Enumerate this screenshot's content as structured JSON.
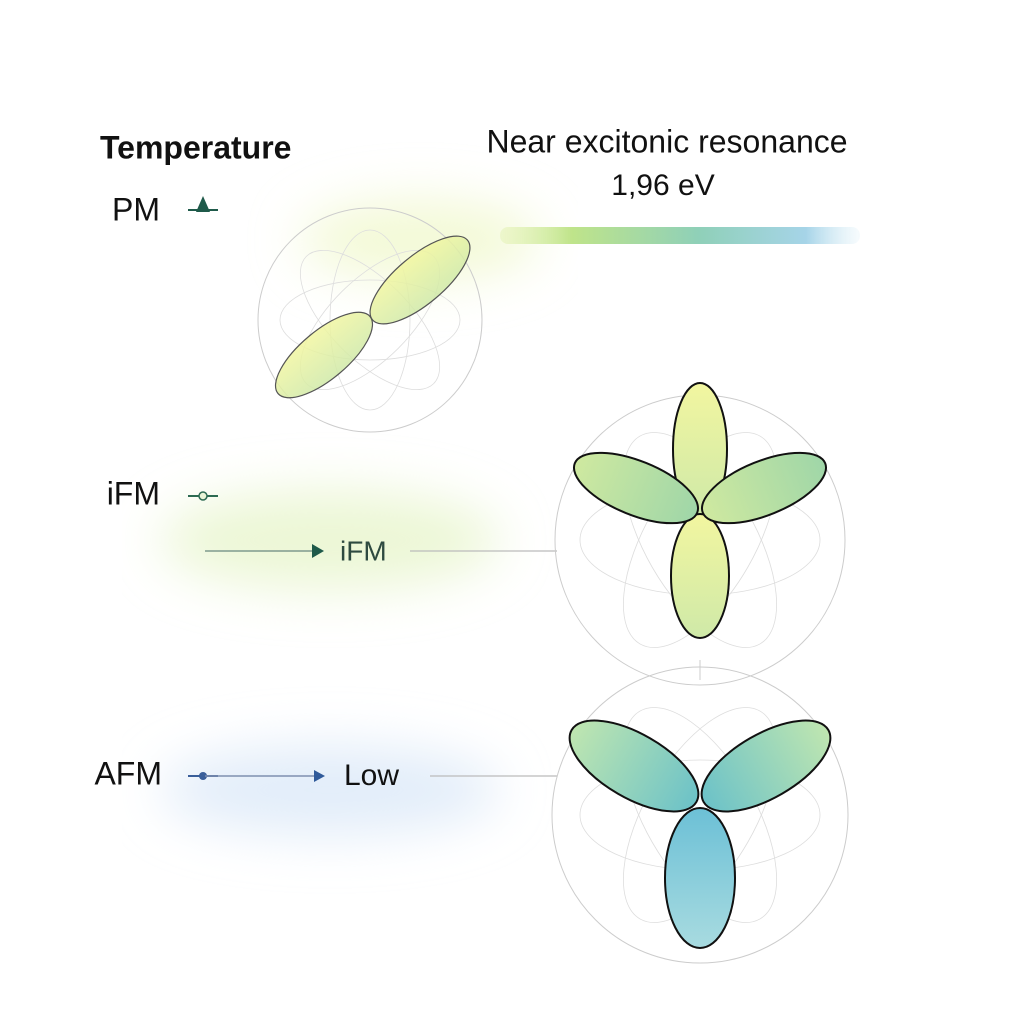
{
  "axis": {
    "title": "Temperature",
    "levels": [
      "PM",
      "iFM",
      "AFM"
    ]
  },
  "arrows": [
    {
      "label": "iFM"
    },
    {
      "label": "Low"
    }
  ],
  "resonance": {
    "title": "Near excitonic resonance",
    "energy": "1,96 eV"
  }
}
